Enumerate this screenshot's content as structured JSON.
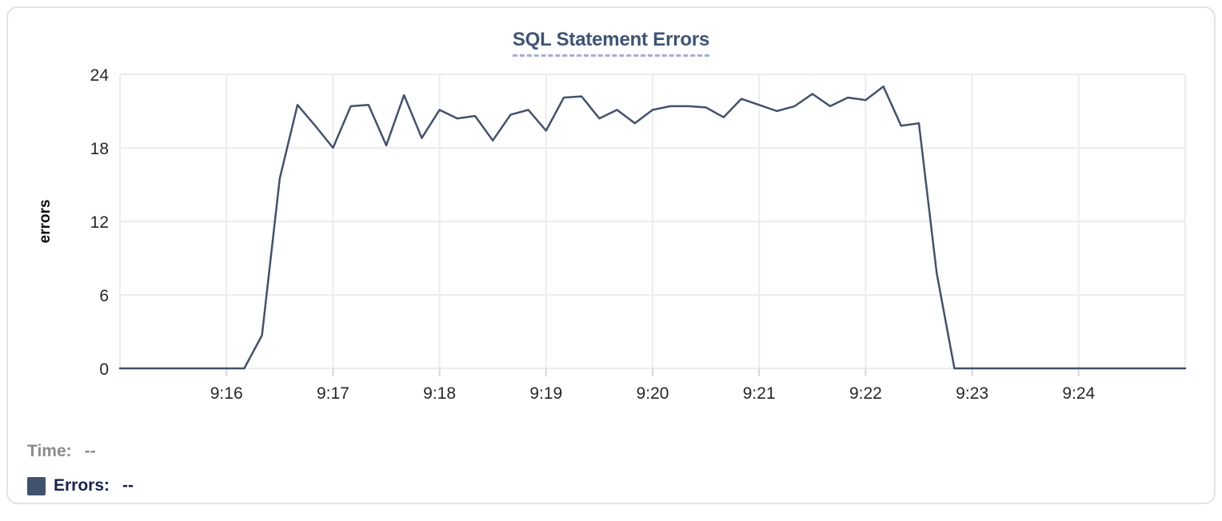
{
  "chart": {
    "title": "SQL Statement Errors"
  },
  "tooltip": {
    "time_label": "Time:",
    "time_value": "--",
    "errors_label": "Errors:",
    "errors_value": "--"
  },
  "colors": {
    "series_line": "#42526e",
    "legend_swatch": "#42526e",
    "title_text": "#3d5475",
    "title_underline": "#a2b0ce",
    "errors_label_text": "#16254e",
    "time_label_text": "#8c8c8c",
    "gridline": "#ececec",
    "tick_mark": "#d7d7d7",
    "axis_tick_text": "#262626"
  },
  "chart_data": {
    "type": "line",
    "title": "SQL Statement Errors",
    "xlabel": "",
    "ylabel": "errors",
    "ylim": [
      0,
      24
    ],
    "y_ticks": [
      0,
      6,
      12,
      18,
      24
    ],
    "x_tick_labels": [
      "9:16",
      "9:17",
      "9:18",
      "9:19",
      "9:20",
      "9:21",
      "9:22",
      "9:23",
      "9:24"
    ],
    "x_range": [
      "9:15:00",
      "9:25:00"
    ],
    "grid": true,
    "legend_position": "bottom-left",
    "series": [
      {
        "name": "Errors",
        "x": [
          "9:15:00",
          "9:15:10",
          "9:15:20",
          "9:15:30",
          "9:15:40",
          "9:15:50",
          "9:16:00",
          "9:16:10",
          "9:16:20",
          "9:16:30",
          "9:16:40",
          "9:16:50",
          "9:17:00",
          "9:17:10",
          "9:17:20",
          "9:17:30",
          "9:17:40",
          "9:17:50",
          "9:18:00",
          "9:18:10",
          "9:18:20",
          "9:18:30",
          "9:18:40",
          "9:18:50",
          "9:19:00",
          "9:19:10",
          "9:19:20",
          "9:19:30",
          "9:19:40",
          "9:19:50",
          "9:20:00",
          "9:20:10",
          "9:20:20",
          "9:20:30",
          "9:20:40",
          "9:20:50",
          "9:21:00",
          "9:21:10",
          "9:21:20",
          "9:21:30",
          "9:21:40",
          "9:21:50",
          "9:22:00",
          "9:22:10",
          "9:22:20",
          "9:22:30",
          "9:22:40",
          "9:22:50",
          "9:23:00",
          "9:23:10",
          "9:23:20",
          "9:23:30",
          "9:23:40",
          "9:23:50",
          "9:24:00",
          "9:24:10",
          "9:24:20",
          "9:24:30",
          "9:24:40",
          "9:24:50",
          "9:25:00"
        ],
        "values": [
          0,
          0,
          0,
          0,
          0,
          0,
          0,
          0,
          2.7,
          15.5,
          21.5,
          19.8,
          18,
          21.4,
          21.5,
          18.2,
          22.3,
          18.8,
          21.1,
          20.4,
          20.6,
          18.6,
          20.7,
          21.1,
          19.4,
          22.1,
          22.2,
          20.4,
          21.1,
          20,
          21.1,
          21.4,
          21.4,
          21.3,
          20.5,
          22,
          21.5,
          21,
          21.4,
          22.4,
          21.4,
          22.1,
          21.9,
          23,
          19.8,
          20,
          7.8,
          0,
          0,
          0,
          0,
          0,
          0,
          0,
          0,
          0,
          0,
          0,
          0,
          0,
          0
        ]
      }
    ]
  }
}
